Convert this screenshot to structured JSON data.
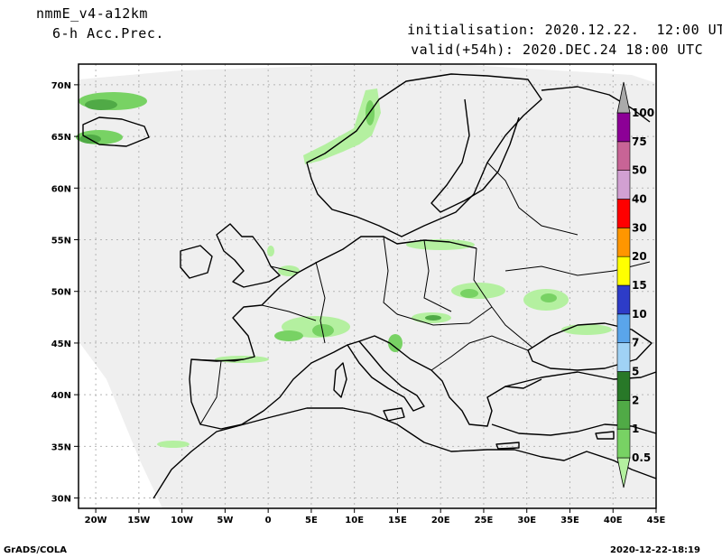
{
  "header": {
    "model": "nmmE_v4-a12km",
    "field": "6-h Acc.Prec.",
    "init_label": "initialisation:",
    "init_value": "2020.12.22.  12:00 UTC",
    "valid_label": "valid(+54h):",
    "valid_value": "2020.DEC.24 18:00 UTC"
  },
  "footer": {
    "software": "GrADS/COLA",
    "timestamp": "2020-12-22-18:19"
  },
  "map": {
    "lat_ticks": [
      "30N",
      "35N",
      "40N",
      "45N",
      "50N",
      "55N",
      "60N",
      "65N",
      "70N"
    ],
    "lon_ticks": [
      "20W",
      "15W",
      "10W",
      "5W",
      "0",
      "5E",
      "10E",
      "15E",
      "20E",
      "25E",
      "30E",
      "35E",
      "40E",
      "45E"
    ],
    "lat_values": [
      30,
      35,
      40,
      45,
      50,
      55,
      60,
      65,
      70
    ],
    "lon_values": [
      -20,
      -15,
      -10,
      -5,
      0,
      5,
      10,
      15,
      20,
      25,
      30,
      35,
      40,
      45
    ],
    "lon_range": [
      -22,
      45
    ],
    "lat_range": [
      29,
      72
    ],
    "grid": true
  },
  "colorbar": {
    "labels": [
      "0.5",
      "1",
      "2",
      "5",
      "7",
      "10",
      "15",
      "20",
      "30",
      "40",
      "50",
      "75",
      "100"
    ],
    "colors": [
      "#b4f0a0",
      "#78d264",
      "#50aa46",
      "#287828",
      "#a0d2f5",
      "#5aa5eb",
      "#2d3cc8",
      "#ffff00",
      "#ff9600",
      "#ff0000",
      "#d2a0d2",
      "#c86496",
      "#8c0096",
      "#aaaaaa"
    ]
  }
}
